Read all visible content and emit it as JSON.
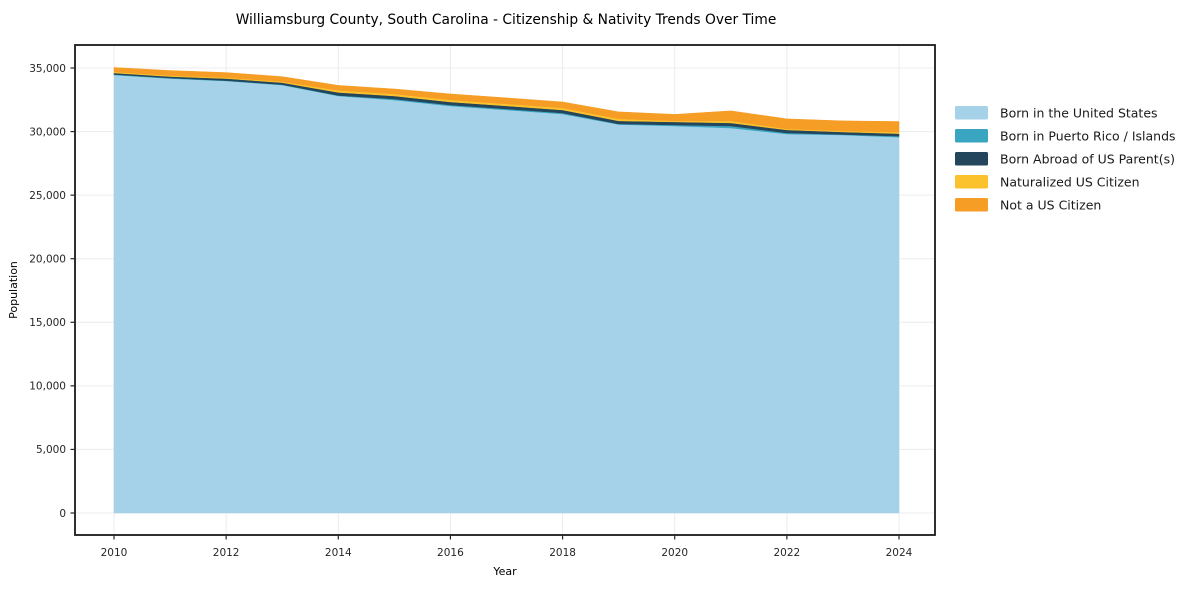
{
  "figure": {
    "background": "#ffffff",
    "spine_color": "#1a1a1a",
    "grid_color": "#ececec",
    "tick_color": "#262626",
    "text_color": "#000000"
  },
  "chart_data": {
    "type": "area",
    "stacked": true,
    "title": "Williamsburg County, South Carolina - Citizenship & Nativity Trends Over Time",
    "xlabel": "Year",
    "ylabel": "Population",
    "grid": true,
    "legend_position": "right-outside",
    "x": [
      2010,
      2011,
      2012,
      2013,
      2014,
      2015,
      2016,
      2017,
      2018,
      2019,
      2020,
      2021,
      2022,
      2023,
      2024
    ],
    "series": [
      {
        "name": "Born in the United States",
        "color": "#a5d2e8",
        "values": [
          34450,
          34170,
          33980,
          33660,
          32800,
          32480,
          32010,
          31700,
          31380,
          30560,
          30440,
          30280,
          29810,
          29730,
          29560
        ]
      },
      {
        "name": "Born in Puerto Rico / Islands",
        "color": "#39a5c0",
        "values": [
          40,
          40,
          30,
          30,
          40,
          80,
          80,
          80,
          80,
          40,
          80,
          160,
          80,
          40,
          80
        ]
      },
      {
        "name": "Born Abroad of US Parent(s)",
        "color": "#24465c",
        "values": [
          120,
          120,
          160,
          160,
          240,
          240,
          240,
          240,
          240,
          240,
          240,
          240,
          240,
          200,
          200
        ]
      },
      {
        "name": "Naturalized US Citizen",
        "color": "#fcc22d",
        "values": [
          80,
          80,
          80,
          80,
          160,
          160,
          160,
          160,
          160,
          160,
          80,
          160,
          80,
          80,
          120
        ]
      },
      {
        "name": "Not a US Citizen",
        "color": "#f59d25",
        "values": [
          350,
          390,
          390,
          390,
          390,
          390,
          470,
          470,
          470,
          550,
          510,
          790,
          790,
          790,
          830
        ]
      }
    ],
    "x_ticks": [
      2010,
      2012,
      2014,
      2016,
      2018,
      2020,
      2022,
      2024
    ],
    "x_tick_labels": [
      "2010",
      "2012",
      "2014",
      "2016",
      "2018",
      "2020",
      "2022",
      "2024"
    ],
    "y_ticks": [
      0,
      5000,
      10000,
      15000,
      20000,
      25000,
      30000,
      35000
    ],
    "y_tick_labels": [
      "0",
      "5,000",
      "10,000",
      "15,000",
      "20,000",
      "25,000",
      "30,000",
      "35,000"
    ],
    "xlim": [
      2009.3,
      2024.65
    ],
    "ylim": [
      -1750,
      36800
    ]
  }
}
